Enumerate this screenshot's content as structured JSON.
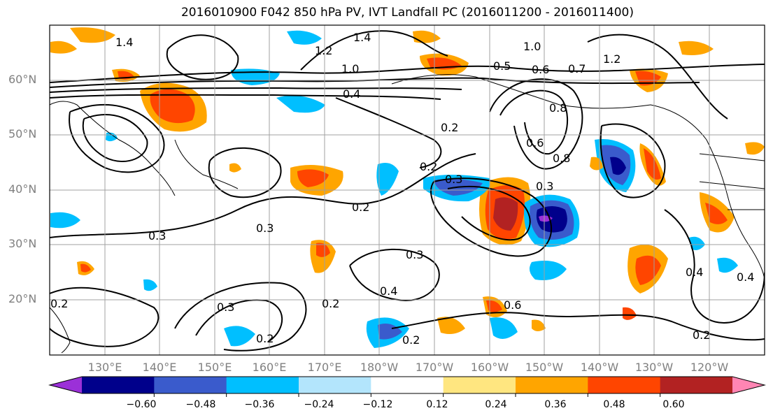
{
  "title": "2016010900 F042 850 hPa PV, IVT Landfall PC (2016011200 - 2016011400)",
  "lat_labels": [
    "60°N",
    "50°N",
    "40°N",
    "30°N",
    "20°N"
  ],
  "lon_labels": [
    "130°E",
    "140°E",
    "150°E",
    "160°E",
    "170°E",
    "180°W",
    "170°W",
    "160°W",
    "150°W",
    "140°W",
    "130°W",
    "120°W"
  ],
  "contour_labels": [
    "1.4",
    "1.4",
    "1.2",
    "1.0",
    "0.5",
    "0.6",
    "0.7",
    "1.2",
    "1.0",
    "0.8",
    "0.4",
    "0.2",
    "0.2",
    "0.8",
    "0.6",
    "0.3",
    "0.3",
    "0.2",
    "0.3",
    "0.3",
    "0.4",
    "0.2",
    "0.3",
    "0.2",
    "0.2",
    "0.4",
    "0.2",
    "0.2",
    "0.3",
    "0.4",
    "0.6"
  ],
  "colorbar": {
    "tick_labels": [
      "−0.60",
      "−0.48",
      "−0.36",
      "−0.24",
      "−0.12",
      "0.12",
      "0.24",
      "0.36",
      "0.48",
      "0.60"
    ],
    "colors": [
      "#9b30d8",
      "#00008b",
      "#3a5bcc",
      "#00bfff",
      "#b3e5fc",
      "#ffffff",
      "#ffe680",
      "#ffa500",
      "#ff4500",
      "#b22222",
      "#ff85b3"
    ]
  }
}
